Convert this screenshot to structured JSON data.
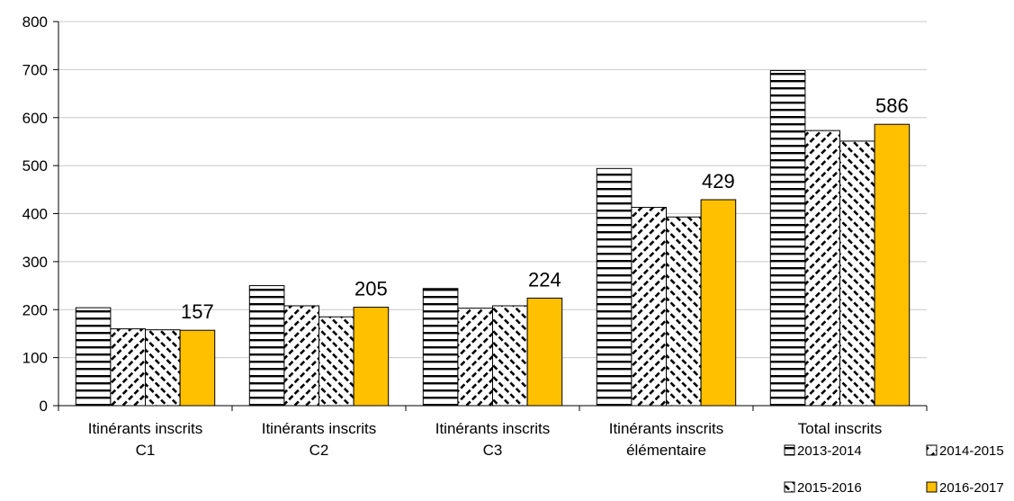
{
  "chart_data": {
    "type": "bar",
    "categories": [
      [
        "Itinérants inscrits",
        "C1"
      ],
      [
        "Itinérants inscrits",
        "C2"
      ],
      [
        "Itinérants inscrits",
        "C3"
      ],
      [
        "Itinérants inscrits",
        "élémentaire"
      ],
      [
        "Total inscrits"
      ]
    ],
    "series": [
      {
        "name": "2013-2014",
        "values": [
          204,
          250,
          244,
          494,
          698
        ],
        "pattern": "horizontal",
        "color": "#000000"
      },
      {
        "name": "2014-2015",
        "values": [
          160,
          208,
          203,
          413,
          573
        ],
        "pattern": "forward-diagonal",
        "color": "#000000"
      },
      {
        "name": "2015-2016",
        "values": [
          158,
          185,
          208,
          393,
          551
        ],
        "pattern": "back-diagonal",
        "color": "#000000"
      },
      {
        "name": "2016-2017",
        "values": [
          157,
          205,
          224,
          429,
          586
        ],
        "pattern": "solid",
        "color": "#FFC000"
      }
    ],
    "data_labels": {
      "series": "2016-2017",
      "values": [
        "157",
        "205",
        "224",
        "429",
        "586"
      ]
    },
    "y_ticks": [
      "0",
      "100",
      "200",
      "300",
      "400",
      "500",
      "600",
      "700",
      "800"
    ],
    "ylim": [
      0,
      800
    ],
    "grid": true,
    "legend_position": "bottom-right",
    "title": "",
    "xlabel": "",
    "ylabel": ""
  }
}
